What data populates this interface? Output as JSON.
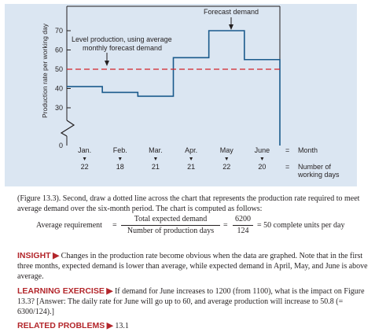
{
  "chart_data": {
    "type": "line",
    "title": "",
    "ylabel": "Production rate per working day",
    "ylim": [
      0,
      80
    ],
    "y_ticks": [
      30,
      40,
      50,
      60,
      70
    ],
    "y_zero_label": "0",
    "axis_break": true,
    "categories": [
      "Jan.",
      "Feb.",
      "Mar.",
      "Apr.",
      "May",
      "June"
    ],
    "working_days": [
      "22",
      "18",
      "21",
      "21",
      "22",
      "20"
    ],
    "series": [
      {
        "values": [
          41,
          38,
          36,
          56,
          70,
          55
        ],
        "style": "solid-step"
      },
      {
        "values": [
          50,
          50,
          50,
          50,
          50,
          50
        ],
        "style": "dashed"
      }
    ],
    "month_legend": {
      "equals": "=",
      "label": "Month"
    },
    "days_legend": {
      "equals": "=",
      "label_line1": "Number of",
      "label_line2": "working days"
    },
    "annotations": {
      "forecast": "Forecast demand",
      "level_line1": "Level production, using average",
      "level_line2": "monthly forecast demand"
    },
    "colors": {
      "panel": "#dbe6f2",
      "step_line": "#1a5a8c",
      "dashed_line": "#d2232a",
      "axis": "#231f20"
    }
  },
  "caption": "(Figure 13.3). Second, draw a dotted line across the chart that represents the production rate required to meet average demand over the six-month period. The chart is computed as follows:",
  "formula": {
    "lhs": "Average requirement",
    "eq1": "=",
    "num1": "Total expected demand",
    "den1": "Number of production days",
    "eq2": "=",
    "num2": "6200",
    "den2": "124",
    "rhs": "= 50 complete units per day"
  },
  "insight": {
    "label": "INSIGHT",
    "text": "Changes in the production rate become obvious when the data are graphed. Note that in the first three months, expected demand is lower than average, while expected demand in April, May, and June is above average."
  },
  "exercise": {
    "label": "LEARNING EXERCISE",
    "text": "If demand for June increases to 1200 (from 1100), what is the impact on Figure 13.3? [Answer: The daily rate for June will go up to 60, and average production will increase to 50.8 (= 6300/124).]"
  },
  "related": {
    "label": "RELATED PROBLEMS",
    "text": "13.1"
  }
}
